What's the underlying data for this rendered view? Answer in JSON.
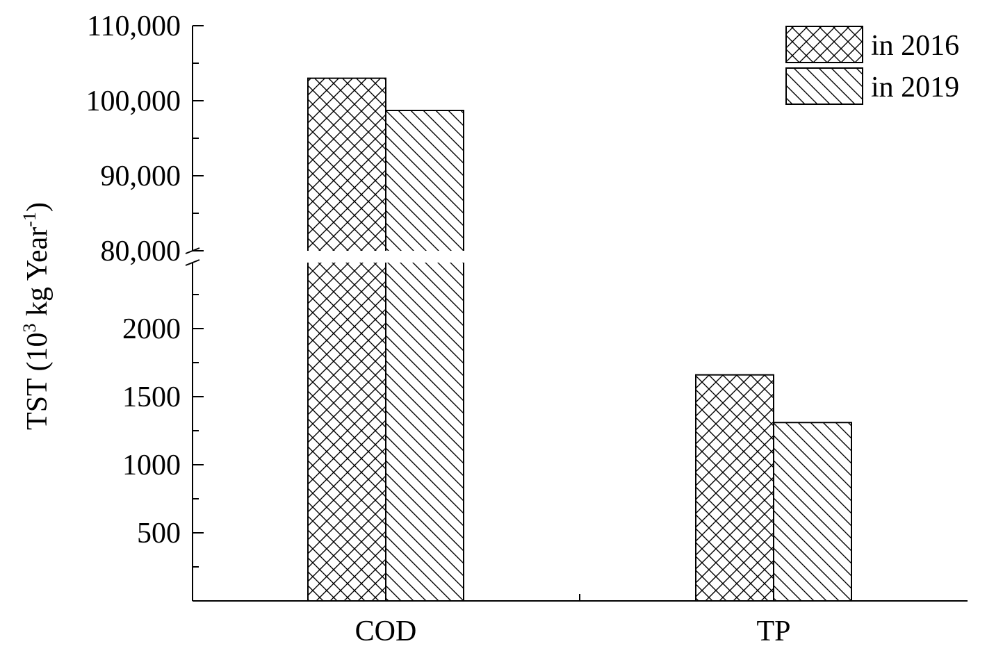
{
  "chart_data": {
    "type": "bar",
    "categories": [
      "COD",
      "TP"
    ],
    "series": [
      {
        "name": "in 2016",
        "values": [
          103000,
          1660
        ],
        "pattern": "crosshatch"
      },
      {
        "name": "in 2019",
        "values": [
          98700,
          1310
        ],
        "pattern": "diagonal"
      }
    ],
    "ylabel": {
      "prefix": "TST (10",
      "exp1": "3",
      "mid": " kg Year",
      "exp2": "-1",
      "suffix": ")"
    },
    "xlabel": "",
    "axis_break": true,
    "lower_segment": {
      "ylim": [
        0,
        2500
      ],
      "ticks": [
        "500",
        "1000",
        "1500",
        "2000"
      ],
      "tick_values": [
        500,
        1000,
        1500,
        2000
      ]
    },
    "upper_segment": {
      "ylim": [
        80000,
        110000
      ],
      "ticks": [
        "80,000",
        "90,000",
        "100,000",
        "110,000"
      ],
      "tick_values": [
        80000,
        90000,
        100000,
        110000
      ]
    },
    "legend_position": "top-right",
    "grid": false
  }
}
